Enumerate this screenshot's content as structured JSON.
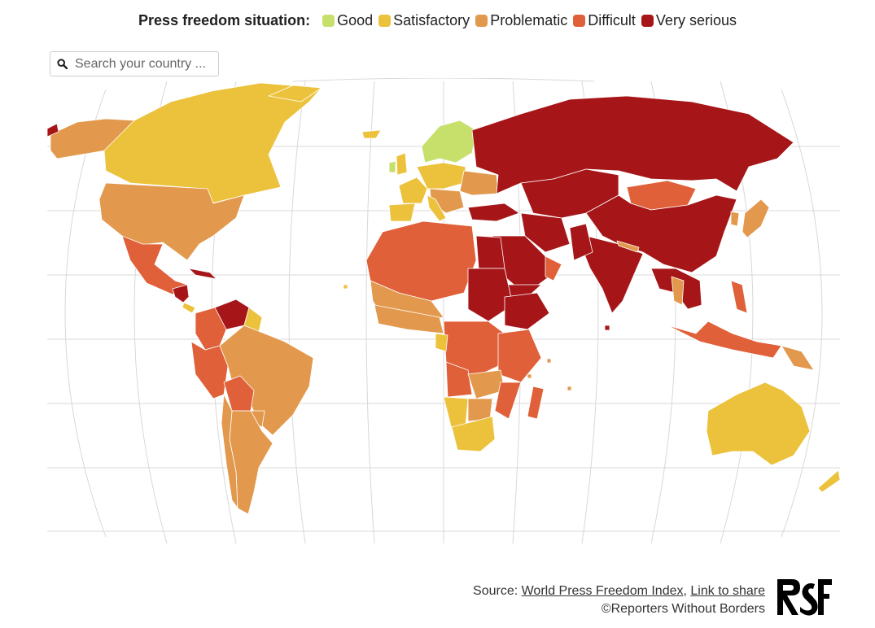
{
  "legend": {
    "title": "Press freedom situation:",
    "items": [
      {
        "label": "Good",
        "color": "#c6e06b"
      },
      {
        "label": "Satisfactory",
        "color": "#ecc23c"
      },
      {
        "label": "Problematic",
        "color": "#e2994d"
      },
      {
        "label": "Difficult",
        "color": "#e0603a"
      },
      {
        "label": "Very serious",
        "color": "#a61618"
      }
    ]
  },
  "search": {
    "placeholder": "Search your country ...",
    "icon": "search-icon"
  },
  "map": {
    "projection": "robinson-like world map",
    "graticule": true
  },
  "footer": {
    "source_prefix": "Source: ",
    "source_link": "World Press Freedom Index",
    "separator": ", ",
    "share_link": "Link to share",
    "copyright": "©Reporters Without Borders"
  },
  "logo": {
    "text": "RSF"
  }
}
